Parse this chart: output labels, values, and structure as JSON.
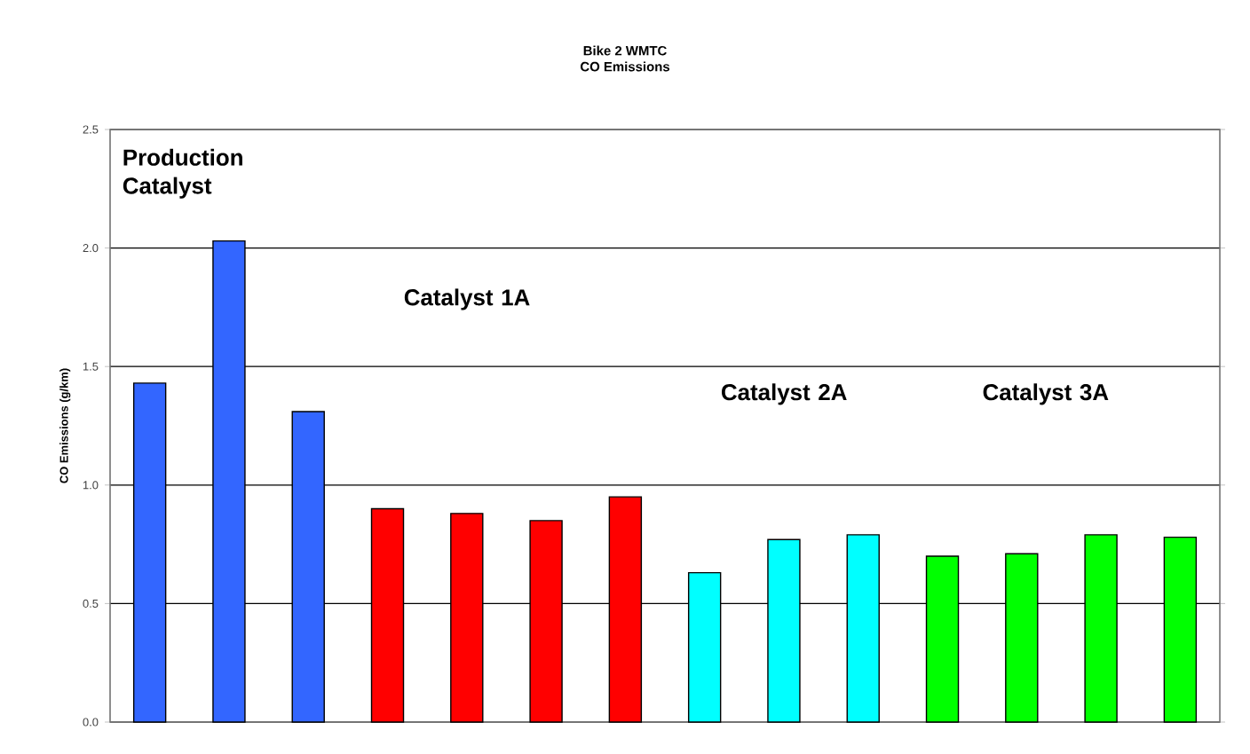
{
  "chart_data": {
    "type": "bar",
    "title": "Bike 2 WMTC",
    "subtitle": "CO Emissions",
    "ylabel": "CO Emissions (g/km)",
    "categories": [
      null,
      null,
      null,
      null,
      null,
      null,
      null,
      null,
      null,
      null,
      null,
      null,
      null,
      null
    ],
    "values": [
      1.43,
      2.03,
      1.31,
      0.9,
      0.88,
      0.85,
      0.95,
      0.63,
      0.77,
      0.79,
      0.7,
      0.71,
      0.79,
      0.78
    ],
    "colors": [
      "#3366ff",
      "#3366ff",
      "#3366ff",
      "#ff0000",
      "#ff0000",
      "#ff0000",
      "#ff0000",
      "#00ffff",
      "#00ffff",
      "#00ffff",
      "#00ff00",
      "#00ff00",
      "#00ff00",
      "#00ff00"
    ],
    "ylim": [
      0,
      2.5
    ],
    "yticks": [
      {
        "value": 0,
        "label": "0.0"
      },
      0.5,
      {
        "value": 1,
        "label": "1.0"
      },
      1.5,
      {
        "value": 2,
        "label": "2.0"
      },
      2.5
    ],
    "grid": "y",
    "annotations": [
      "Production Catalyst",
      "Catalyst 1A",
      "Catalyst 2A",
      "Catalyst 3A"
    ]
  }
}
